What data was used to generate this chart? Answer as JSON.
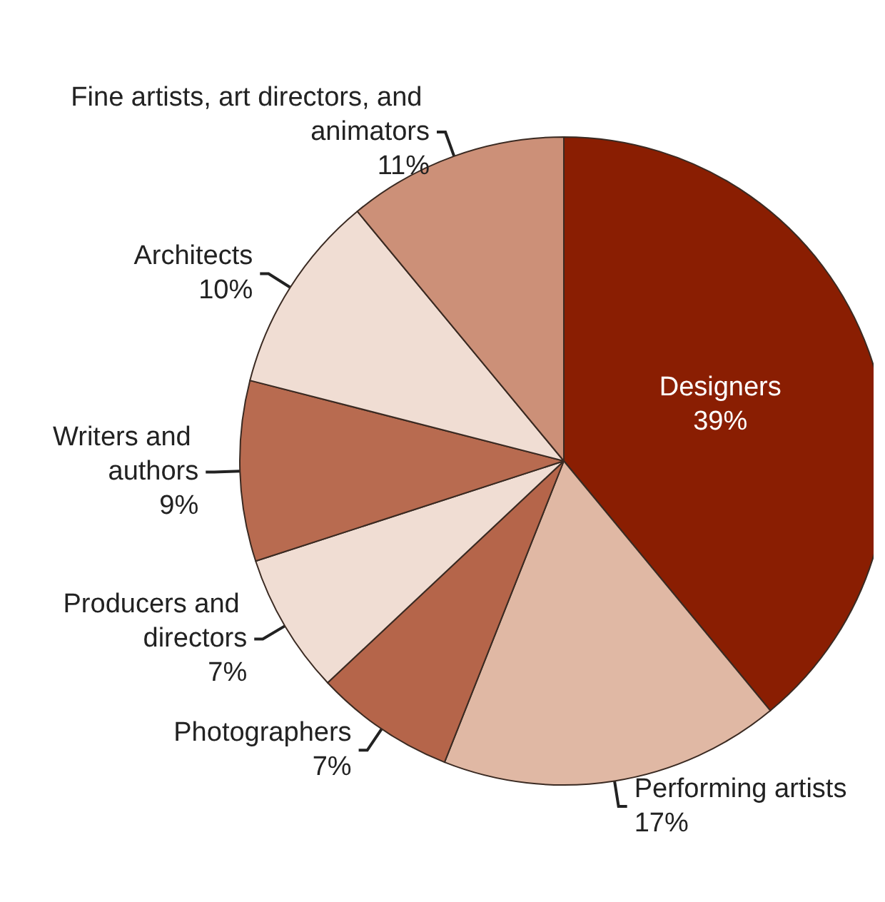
{
  "chart_data": {
    "type": "pie",
    "categories": [
      "Designers",
      "Performing artists",
      "Photographers",
      "Producers and directors",
      "Writers and authors",
      "Architects",
      "Fine artists, art directors, and animators"
    ],
    "values": [
      39,
      17,
      7,
      7,
      9,
      10,
      11
    ],
    "value_labels": [
      "39%",
      "17%",
      "7%",
      "7%",
      "9%",
      "10%",
      "11%"
    ],
    "colors": [
      "#8a1e02",
      "#e0b8a4",
      "#b5654a",
      "#f0ddd3",
      "#b86b50",
      "#f0ddd3",
      "#cc9078"
    ],
    "legend": false
  }
}
